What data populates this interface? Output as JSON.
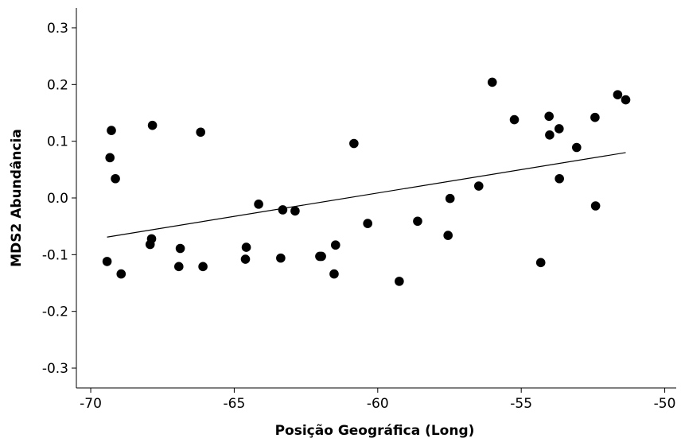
{
  "chart_data": {
    "type": "scatter",
    "title": "",
    "xlabel": "Posição Geográfica (Long)",
    "ylabel": "MDS2 Abundância",
    "xlim": [
      -70.5,
      -49.6
    ],
    "ylim": [
      -0.335,
      0.335
    ],
    "xticks": [
      -70,
      -65,
      -60,
      -55,
      -50
    ],
    "xtick_labels": [
      "-70",
      "-65",
      "-60",
      "-55",
      "-50"
    ],
    "yticks": [
      0.3,
      0.2,
      0.1,
      0.0,
      -0.1,
      -0.2,
      -0.3
    ],
    "ytick_labels": [
      "0.3",
      "0.2",
      "0.1",
      "0.0",
      "-0.1",
      "-0.2",
      "-0.3"
    ],
    "grid": false,
    "legend": "none",
    "point_color": "#000000",
    "points": [
      {
        "x": -69.43,
        "y": -0.112
      },
      {
        "x": -69.33,
        "y": 0.071
      },
      {
        "x": -69.28,
        "y": 0.119
      },
      {
        "x": -69.14,
        "y": 0.034
      },
      {
        "x": -68.94,
        "y": -0.134
      },
      {
        "x": -67.93,
        "y": -0.082
      },
      {
        "x": -67.88,
        "y": -0.072
      },
      {
        "x": -67.85,
        "y": 0.128
      },
      {
        "x": -66.93,
        "y": -0.121
      },
      {
        "x": -66.88,
        "y": -0.089
      },
      {
        "x": -66.17,
        "y": 0.116
      },
      {
        "x": -66.09,
        "y": -0.121
      },
      {
        "x": -64.61,
        "y": -0.108
      },
      {
        "x": -64.58,
        "y": -0.087
      },
      {
        "x": -64.15,
        "y": -0.011
      },
      {
        "x": -63.38,
        "y": -0.106
      },
      {
        "x": -63.31,
        "y": -0.021
      },
      {
        "x": -62.88,
        "y": -0.023
      },
      {
        "x": -62.02,
        "y": -0.103
      },
      {
        "x": -61.96,
        "y": -0.103
      },
      {
        "x": -61.52,
        "y": -0.134
      },
      {
        "x": -61.47,
        "y": -0.083
      },
      {
        "x": -60.83,
        "y": 0.096
      },
      {
        "x": -60.35,
        "y": -0.045
      },
      {
        "x": -59.25,
        "y": -0.147
      },
      {
        "x": -58.61,
        "y": -0.041
      },
      {
        "x": -57.55,
        "y": -0.066
      },
      {
        "x": -57.48,
        "y": -0.001
      },
      {
        "x": -56.48,
        "y": 0.021
      },
      {
        "x": -56.01,
        "y": 0.204
      },
      {
        "x": -55.24,
        "y": 0.138
      },
      {
        "x": -54.32,
        "y": -0.114
      },
      {
        "x": -54.03,
        "y": 0.144
      },
      {
        "x": -54.01,
        "y": 0.111
      },
      {
        "x": -53.68,
        "y": 0.122
      },
      {
        "x": -53.67,
        "y": 0.034
      },
      {
        "x": -53.07,
        "y": 0.089
      },
      {
        "x": -52.43,
        "y": 0.142
      },
      {
        "x": -52.41,
        "y": -0.014
      },
      {
        "x": -51.64,
        "y": 0.182
      },
      {
        "x": -51.36,
        "y": 0.173
      }
    ],
    "fit_line": {
      "x": [
        -69.43,
        -51.36
      ],
      "y": [
        -0.069,
        0.08
      ]
    }
  }
}
